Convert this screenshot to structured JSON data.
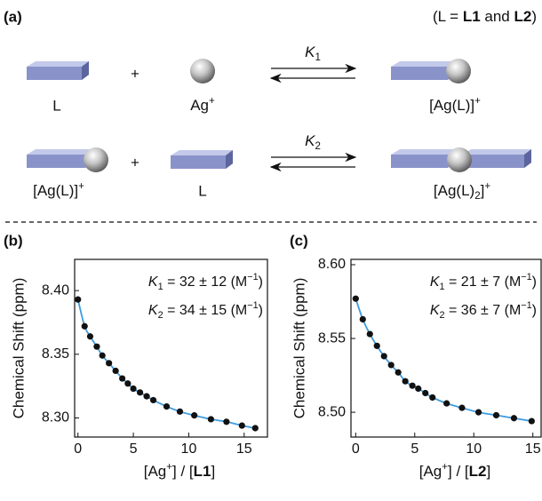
{
  "panels": {
    "a": "(a)",
    "b": "(b)",
    "c": "(c)"
  },
  "scheme": {
    "note": [
      "(L = ",
      "L1",
      " and ",
      "L2",
      ")"
    ],
    "row1": {
      "ligand": "L",
      "plus": "+",
      "ion": [
        "Ag",
        "+"
      ],
      "constant": [
        "K",
        "1"
      ],
      "product": [
        "[Ag(L)]",
        "+"
      ]
    },
    "row2": {
      "complex": [
        "[Ag(L)]",
        "+"
      ],
      "plus": "+",
      "ligand": "L",
      "constant": [
        "K",
        "2"
      ],
      "product": [
        "[Ag(L)",
        "2",
        "]",
        "+"
      ]
    }
  },
  "chart_data": [
    {
      "type": "scatter",
      "ylabel": "Chemical Shift (ppm)",
      "xlabel": [
        "[Ag",
        "+",
        "] / [",
        "L1",
        "]"
      ],
      "annotations": [
        [
          "K",
          "1",
          " = 32 ± 12 (M",
          "−1",
          ")"
        ],
        [
          "K",
          "2",
          " = 34 ± 15 (M",
          "−1",
          ")"
        ]
      ],
      "x": [
        0,
        0.6,
        1.1,
        1.7,
        2.2,
        2.8,
        3.4,
        4.0,
        4.5,
        5.0,
        5.6,
        6.2,
        6.8,
        8.0,
        9.2,
        10.5,
        12.0,
        13.4,
        14.8,
        16.0
      ],
      "values": [
        8.393,
        8.372,
        8.364,
        8.356,
        8.349,
        8.343,
        8.337,
        8.331,
        8.327,
        8.323,
        8.32,
        8.317,
        8.314,
        8.309,
        8.305,
        8.302,
        8.299,
        8.297,
        8.294,
        8.292
      ],
      "marker_color": "#111111",
      "line_color": "#3d9be0",
      "xlim": [
        -0.3,
        17.1
      ],
      "ylim": [
        8.285,
        8.4245
      ],
      "xticks": [
        0,
        5,
        10,
        15
      ],
      "yticks": [
        {
          "value": 8.3,
          "label": "8.30"
        },
        8.35,
        {
          "value": 8.4,
          "label": "8.40"
        }
      ]
    },
    {
      "type": "scatter",
      "ylabel": "Chemical Shift (ppm)",
      "xlabel": [
        "[Ag",
        "+",
        "] / [",
        "L2",
        "]"
      ],
      "annotations": [
        [
          "K",
          "1",
          " = 21 ± 7 (M",
          "−1",
          ")"
        ],
        [
          "K",
          "2",
          " = 36 ± 7 (M",
          "−1",
          ")"
        ]
      ],
      "x": [
        0,
        0.6,
        1.2,
        1.8,
        2.4,
        3.0,
        3.6,
        4.2,
        4.8,
        5.3,
        5.9,
        6.5,
        7.7,
        9.0,
        10.4,
        11.9,
        13.4,
        14.9
      ],
      "values": [
        8.577,
        8.563,
        8.553,
        8.545,
        8.538,
        8.532,
        8.527,
        8.521,
        8.518,
        8.516,
        8.513,
        8.51,
        8.506,
        8.503,
        8.5,
        8.498,
        8.496,
        8.494
      ],
      "marker_color": "#111111",
      "line_color": "#3d9be0",
      "xlim": [
        -0.4,
        15.7
      ],
      "ylim": [
        8.4832,
        8.6036
      ],
      "xticks": [
        0,
        5,
        10,
        15
      ],
      "yticks": [
        {
          "value": 8.5,
          "label": "8.50"
        },
        8.55,
        {
          "value": 8.6,
          "label": "8.60"
        }
      ]
    }
  ]
}
